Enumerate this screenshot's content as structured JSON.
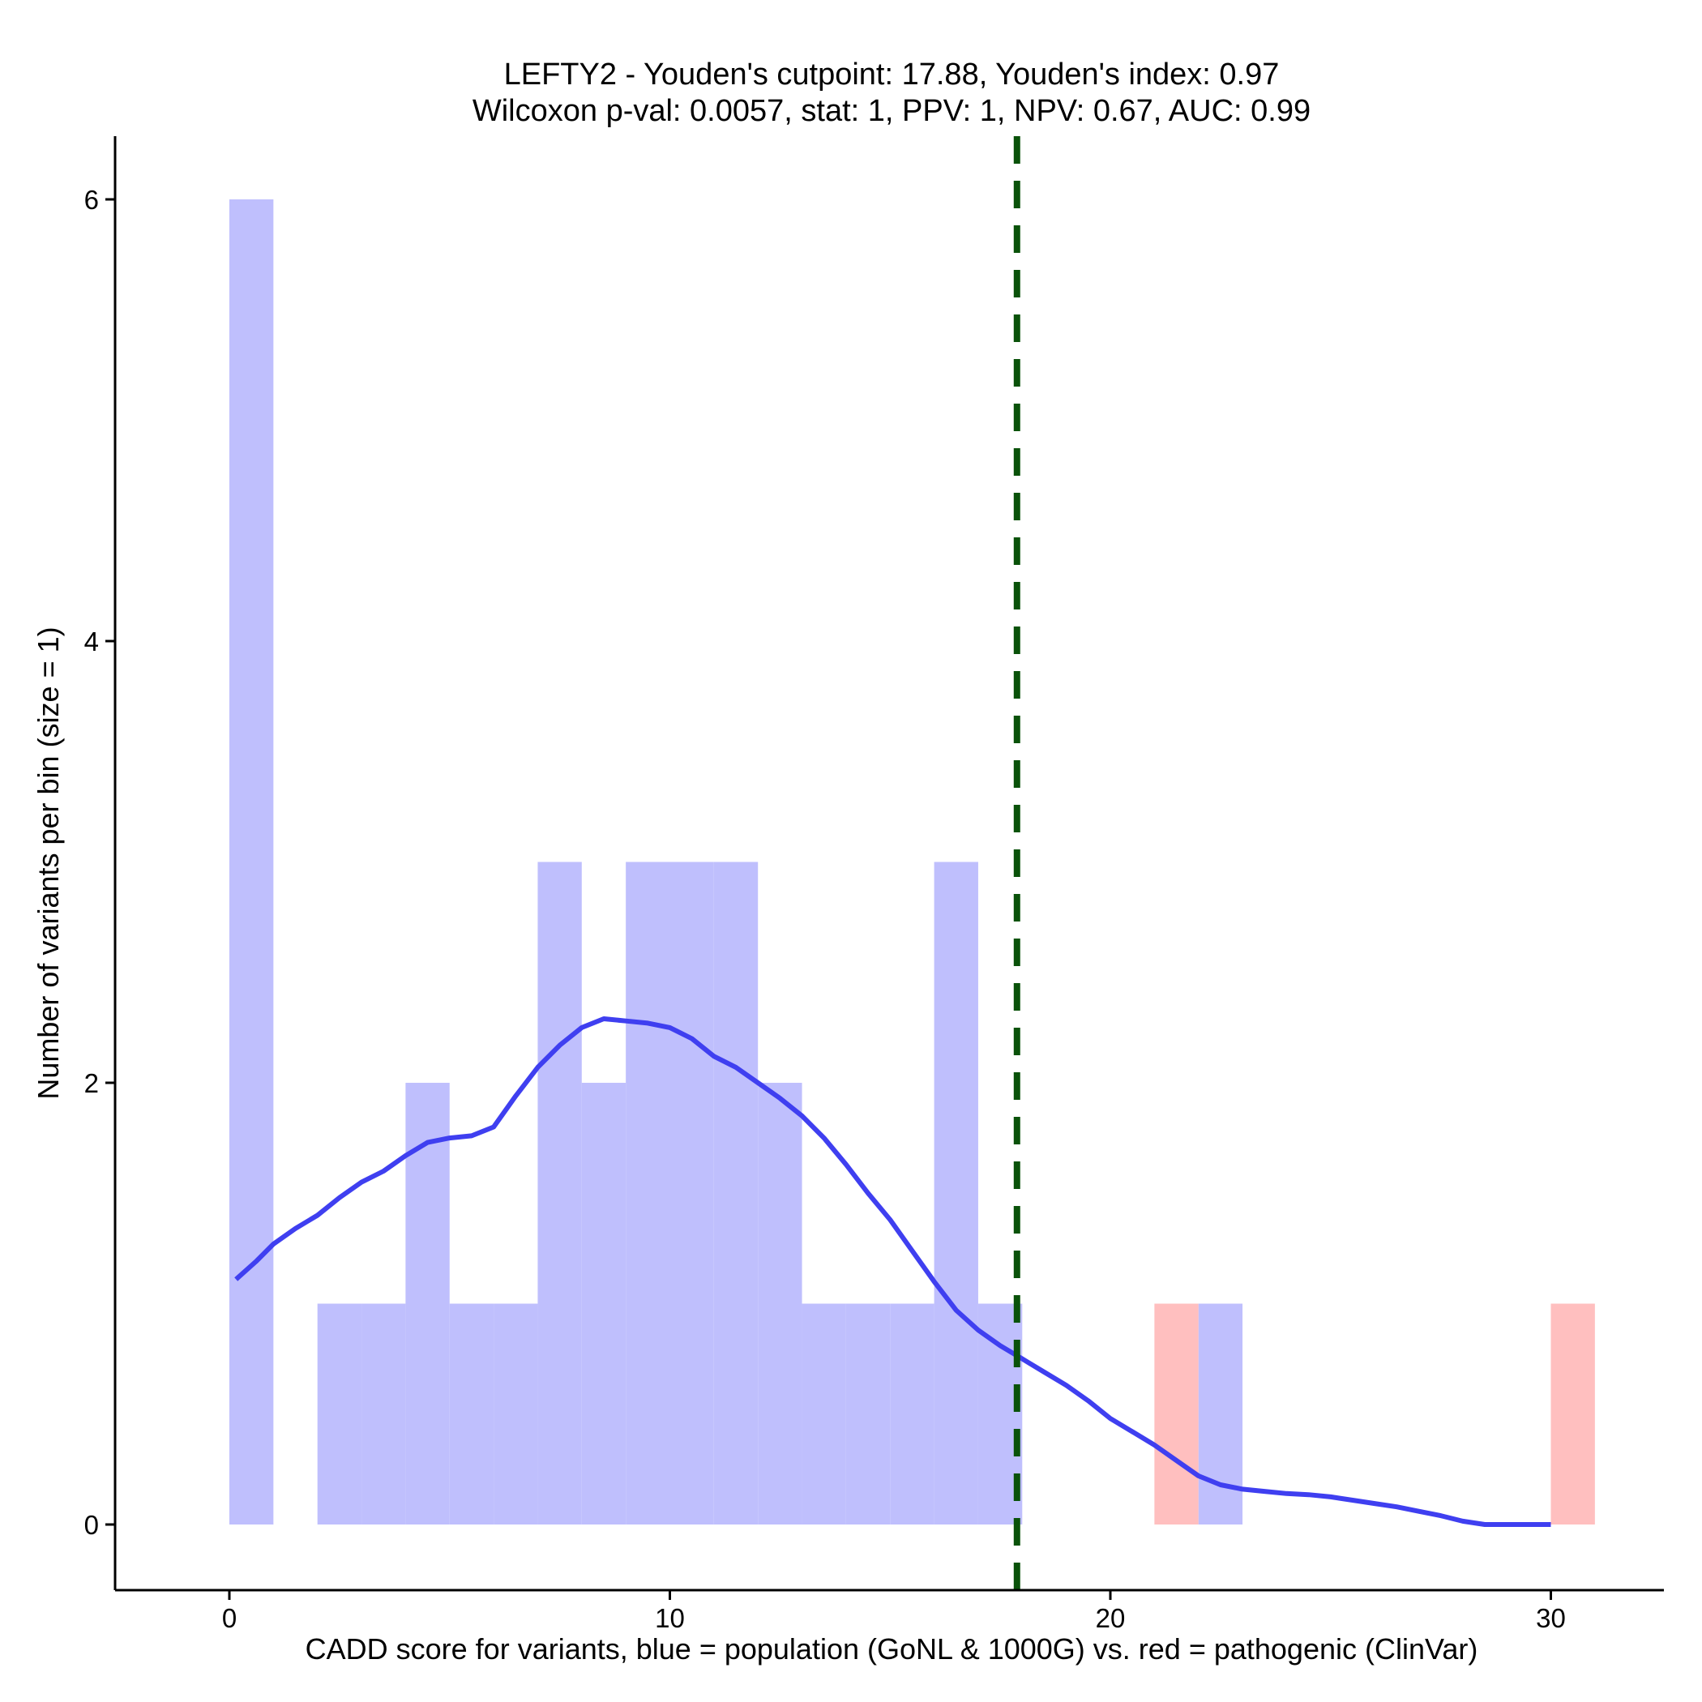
{
  "chart_data": {
    "type": "bar",
    "title": "LEFTY2 - Youden's cutpoint: 17.88, Youden's index: 0.97",
    "subtitle": "Wilcoxon p-val: 0.0057, stat: 1, PPV: 1, NPV: 0.67, AUC: 0.99",
    "xlabel": "CADD score for variants, blue = population (GoNL & 1000G) vs. red = pathogenic (ClinVar)",
    "ylabel": "Number of variants per bin (size = 1)",
    "xlim": [
      -2.6,
      32.6
    ],
    "ylim": [
      -0.3,
      6.3
    ],
    "x_ticks": [
      0,
      10,
      20,
      30
    ],
    "x_tick_labels": [
      "0",
      "10",
      "20",
      "30"
    ],
    "y_ticks": [
      0,
      2,
      4,
      6
    ],
    "y_tick_labels": [
      "0",
      "2",
      "4",
      "6"
    ],
    "bin_size": 1,
    "series": [
      {
        "name": "population (GoNL & 1000G)",
        "color": "#bfbffd",
        "bins": [
          {
            "start": 0,
            "count": 6
          },
          {
            "start": 2,
            "count": 1
          },
          {
            "start": 3,
            "count": 1
          },
          {
            "start": 4,
            "count": 2
          },
          {
            "start": 5,
            "count": 1
          },
          {
            "start": 6,
            "count": 1
          },
          {
            "start": 7,
            "count": 3
          },
          {
            "start": 8,
            "count": 2
          },
          {
            "start": 9,
            "count": 3
          },
          {
            "start": 10,
            "count": 3
          },
          {
            "start": 11,
            "count": 3
          },
          {
            "start": 12,
            "count": 2
          },
          {
            "start": 13,
            "count": 1
          },
          {
            "start": 14,
            "count": 1
          },
          {
            "start": 15,
            "count": 1
          },
          {
            "start": 16,
            "count": 3
          },
          {
            "start": 17,
            "count": 1
          },
          {
            "start": 22,
            "count": 1
          }
        ]
      },
      {
        "name": "pathogenic (ClinVar)",
        "color": "#ffbfbf",
        "bins": [
          {
            "start": 21,
            "count": 1
          },
          {
            "start": 30,
            "count": 1
          }
        ]
      }
    ],
    "density_curve": {
      "color": "#3f3ff0",
      "x": [
        0.15,
        0.6,
        1.0,
        1.5,
        2.0,
        2.5,
        3.0,
        3.5,
        4.0,
        4.5,
        5.0,
        5.5,
        6.0,
        6.5,
        7.0,
        7.5,
        8.0,
        8.5,
        9.0,
        9.5,
        10.0,
        10.5,
        11.0,
        11.5,
        12.0,
        12.5,
        13.0,
        13.5,
        14.0,
        14.5,
        15.0,
        15.5,
        16.0,
        16.5,
        17.0,
        17.5,
        18.0,
        18.5,
        19.0,
        19.5,
        20.0,
        20.5,
        21.0,
        21.5,
        22.0,
        22.5,
        23.0,
        23.5,
        24.0,
        24.5,
        25.0,
        25.5,
        26.0,
        26.5,
        27.0,
        27.5,
        28.0,
        28.5,
        29.0,
        29.5,
        30.0
      ],
      "y": [
        1.11,
        1.19,
        1.27,
        1.34,
        1.4,
        1.48,
        1.55,
        1.6,
        1.67,
        1.73,
        1.75,
        1.76,
        1.8,
        1.94,
        2.07,
        2.17,
        2.25,
        2.29,
        2.28,
        2.27,
        2.25,
        2.2,
        2.12,
        2.07,
        2.0,
        1.93,
        1.85,
        1.75,
        1.63,
        1.5,
        1.38,
        1.24,
        1.1,
        0.97,
        0.88,
        0.81,
        0.75,
        0.69,
        0.63,
        0.56,
        0.48,
        0.42,
        0.36,
        0.29,
        0.22,
        0.18,
        0.16,
        0.15,
        0.14,
        0.135,
        0.125,
        0.11,
        0.095,
        0.08,
        0.06,
        0.04,
        0.015,
        0.0,
        0.0,
        0.0,
        0.0
      ]
    },
    "cutpoint": {
      "x": 17.88,
      "color": "#0a520a",
      "style": "dashed"
    },
    "legend": "none",
    "grid": false
  }
}
